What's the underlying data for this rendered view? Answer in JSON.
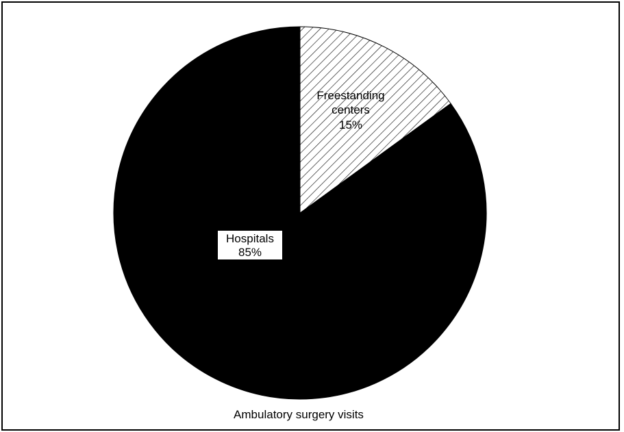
{
  "chart_data": {
    "type": "pie",
    "caption": "Ambulatory surgery visits",
    "slices": [
      {
        "category": "Freestanding",
        "category_line2": "centers",
        "value": 15,
        "value_label": "15%",
        "fill": "hatch"
      },
      {
        "category": "Hospitals",
        "value": 85,
        "value_label": "85%",
        "fill": "#000000"
      }
    ]
  }
}
